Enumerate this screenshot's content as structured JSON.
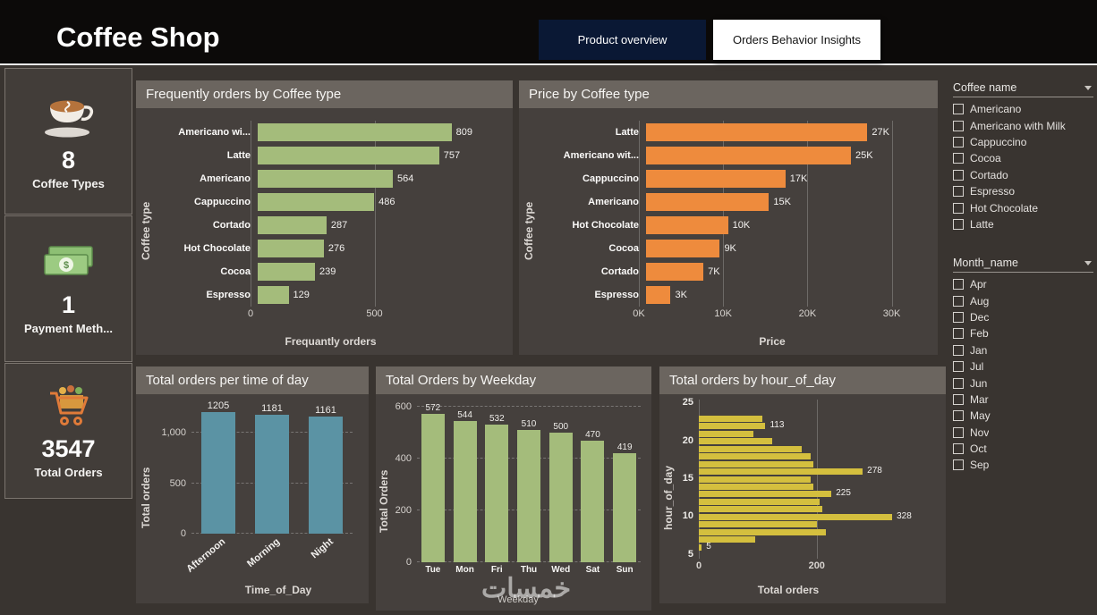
{
  "header": {
    "title": "Coffee Shop",
    "tabs": [
      {
        "label": "Product overview",
        "active": false
      },
      {
        "label": "Orders Behavior Insights",
        "active": true
      }
    ]
  },
  "kpis": [
    {
      "icon": "coffee-cup-icon",
      "value": "8",
      "label": "Coffee Types"
    },
    {
      "icon": "money-icon",
      "value": "1",
      "label": "Payment Meth..."
    },
    {
      "icon": "shopping-cart-icon",
      "value": "3547",
      "label": "Total Orders"
    }
  ],
  "chart_data": [
    {
      "type": "bar",
      "orientation": "horizontal",
      "title": "Frequently orders by Coffee type",
      "xlabel": "Frequantly orders",
      "ylabel": "Coffee type",
      "categories": [
        "Americano wi...",
        "Latte",
        "Americano",
        "Cappuccino",
        "Cortado",
        "Hot Chocolate",
        "Cocoa",
        "Espresso"
      ],
      "values": [
        809,
        757,
        564,
        486,
        287,
        276,
        239,
        129
      ],
      "data_labels": [
        "809",
        "757",
        "564",
        "486",
        "287",
        "276",
        "239",
        "129"
      ],
      "xlim": [
        0,
        870
      ],
      "xticks": [
        {
          "value": 0,
          "label": "0"
        },
        {
          "value": 500,
          "label": "500"
        }
      ],
      "bar_color": "#a4bc7b",
      "grid": true
    },
    {
      "type": "bar",
      "orientation": "horizontal",
      "title": "Price by Coffee type",
      "xlabel": "Price",
      "ylabel": "Coffee type",
      "categories": [
        "Latte",
        "Americano wit...",
        "Cappuccino",
        "Americano",
        "Hot Chocolate",
        "Cocoa",
        "Cortado",
        "Espresso"
      ],
      "values": [
        27000,
        25000,
        17000,
        15000,
        10000,
        9000,
        7000,
        3000
      ],
      "data_labels": [
        "27K",
        "25K",
        "17K",
        "15K",
        "10K",
        "9K",
        "7K",
        "3K"
      ],
      "xlim": [
        0,
        31000
      ],
      "xticks": [
        {
          "value": 0,
          "label": "0K"
        },
        {
          "value": 10000,
          "label": "10K"
        },
        {
          "value": 20000,
          "label": "20K"
        },
        {
          "value": 30000,
          "label": "30K"
        }
      ],
      "bar_color": "#ee8b3d",
      "grid": true
    },
    {
      "type": "bar",
      "orientation": "vertical",
      "title": "Total orders per time of day",
      "xlabel": "Time_of_Day",
      "ylabel": "Total orders",
      "categories": [
        "Afternoon",
        "Morning",
        "Night"
      ],
      "values": [
        1205,
        1181,
        1161
      ],
      "data_labels": [
        "1205",
        "1181",
        "1161"
      ],
      "ylim": [
        0,
        1330
      ],
      "yticks": [
        {
          "value": 0,
          "label": "0"
        },
        {
          "value": 500,
          "label": "500"
        },
        {
          "value": 1000,
          "label": "1,000"
        }
      ],
      "bar_color": "#5b93a4",
      "grid": true
    },
    {
      "type": "bar",
      "orientation": "vertical",
      "title": "Total Orders by Weekday",
      "xlabel": "Weekday",
      "ylabel": "Total Orders",
      "categories": [
        "Tue",
        "Mon",
        "Fri",
        "Thu",
        "Wed",
        "Sat",
        "Sun"
      ],
      "values": [
        572,
        544,
        532,
        510,
        500,
        470,
        419
      ],
      "data_labels": [
        "572",
        "544",
        "532",
        "510",
        "500",
        "470",
        "419"
      ],
      "ylim": [
        0,
        620
      ],
      "yticks": [
        {
          "value": 0,
          "label": "0"
        },
        {
          "value": 200,
          "label": "200"
        },
        {
          "value": 400,
          "label": "400"
        },
        {
          "value": 600,
          "label": "600"
        }
      ],
      "bar_color": "#a4bc7b",
      "grid": true
    },
    {
      "type": "bar",
      "orientation": "horizontal",
      "title": "Total orders by hour_of_day",
      "xlabel": "Total orders",
      "ylabel": "hour_of_day",
      "categories": [
        23,
        22,
        21,
        20,
        19,
        18,
        17,
        16,
        15,
        14,
        13,
        12,
        11,
        10,
        9,
        8,
        7,
        6
      ],
      "values": [
        108,
        113,
        92,
        125,
        175,
        190,
        195,
        278,
        190,
        195,
        225,
        205,
        210,
        328,
        200,
        215,
        95,
        5
      ],
      "data_labels": [
        "",
        "113",
        "",
        "",
        "",
        "",
        "",
        "278",
        "",
        "",
        "225",
        "",
        "",
        "328",
        "",
        "",
        "",
        "5"
      ],
      "y_domain": [
        4.5,
        25.5
      ],
      "yticks": [
        25,
        20,
        15,
        10,
        5
      ],
      "xlim": [
        0,
        340
      ],
      "xticks": [
        {
          "value": 0,
          "label": "0"
        },
        {
          "value": 200,
          "label": "200"
        }
      ],
      "bar_color": "#d4bf3e",
      "grid": true
    }
  ],
  "filters": [
    {
      "title": "Coffee name",
      "items": [
        "Americano",
        "Americano with Milk",
        "Cappuccino",
        "Cocoa",
        "Cortado",
        "Espresso",
        "Hot Chocolate",
        "Latte"
      ]
    },
    {
      "title": "Month_name",
      "items": [
        "Apr",
        "Aug",
        "Dec",
        "Feb",
        "Jan",
        "Jul",
        "Jun",
        "Mar",
        "May",
        "Nov",
        "Oct",
        "Sep"
      ]
    }
  ],
  "watermark": "خمسات",
  "colors": {
    "page_bg": "#393430",
    "header_bg": "#0c0a09",
    "panel_bg": "#45403d",
    "panel_title_bg": "#6b655f",
    "tab_active_bg": "#ffffff",
    "tab_inactive_bg": "#0a1834",
    "green_bar": "#a4bc7b",
    "orange_bar": "#ee8b3d",
    "teal_bar": "#5b93a4",
    "yellow_bar": "#d4bf3e"
  }
}
